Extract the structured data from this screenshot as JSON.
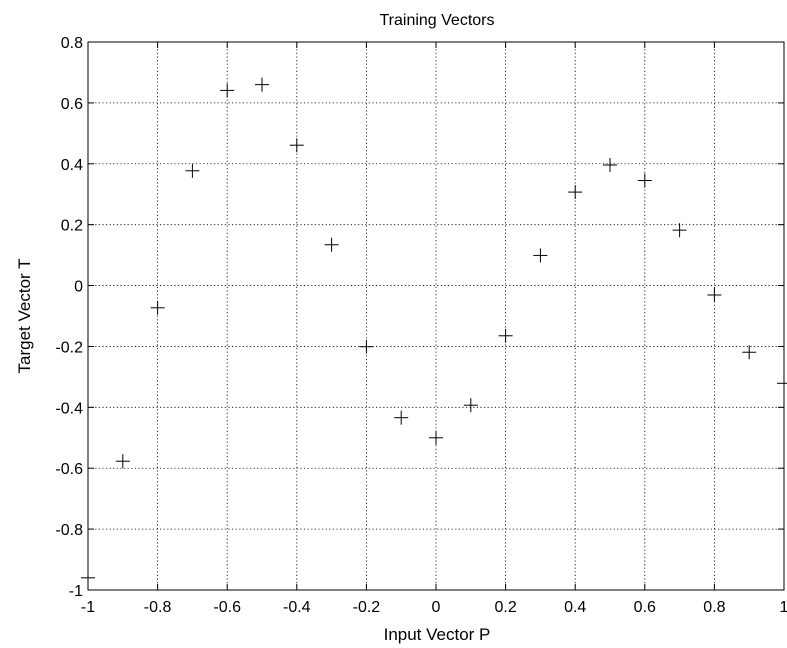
{
  "chart_data": {
    "type": "scatter",
    "title": "Training Vectors",
    "xlabel": "Input Vector P",
    "ylabel": "Target Vector T",
    "xlim": [
      -1,
      1
    ],
    "ylim": [
      -1,
      0.8
    ],
    "xticks": [
      -1,
      -0.8,
      -0.6,
      -0.4,
      -0.2,
      0,
      0.2,
      0.4,
      0.6,
      0.8,
      1
    ],
    "xtick_labels": [
      "-1",
      "-0.8",
      "-0.6",
      "-0.4",
      "-0.2",
      "0",
      "0.2",
      "0.4",
      "0.6",
      "0.8",
      "1"
    ],
    "yticks": [
      -1,
      -0.8,
      -0.6,
      -0.4,
      -0.2,
      0,
      0.2,
      0.4,
      0.6,
      0.8
    ],
    "ytick_labels": [
      "-1",
      "-0.8",
      "-0.6",
      "-0.4",
      "-0.2",
      "0",
      "0.2",
      "0.4",
      "0.6",
      "0.8"
    ],
    "grid": true,
    "marker": "+",
    "marker_color": "#000000",
    "series": [
      {
        "x": [
          -1,
          -0.9,
          -0.8,
          -0.7,
          -0.6,
          -0.5,
          -0.4,
          -0.3,
          -0.2,
          -0.1,
          0,
          0.1,
          0.2,
          0.3,
          0.4,
          0.5,
          0.6,
          0.7,
          0.8,
          0.9,
          1
        ],
        "y": [
          -0.96,
          -0.577,
          -0.073,
          0.377,
          0.641,
          0.66,
          0.461,
          0.134,
          -0.201,
          -0.434,
          -0.5,
          -0.393,
          -0.165,
          0.099,
          0.307,
          0.396,
          0.345,
          0.182,
          -0.031,
          -0.219,
          -0.321
        ]
      }
    ]
  }
}
